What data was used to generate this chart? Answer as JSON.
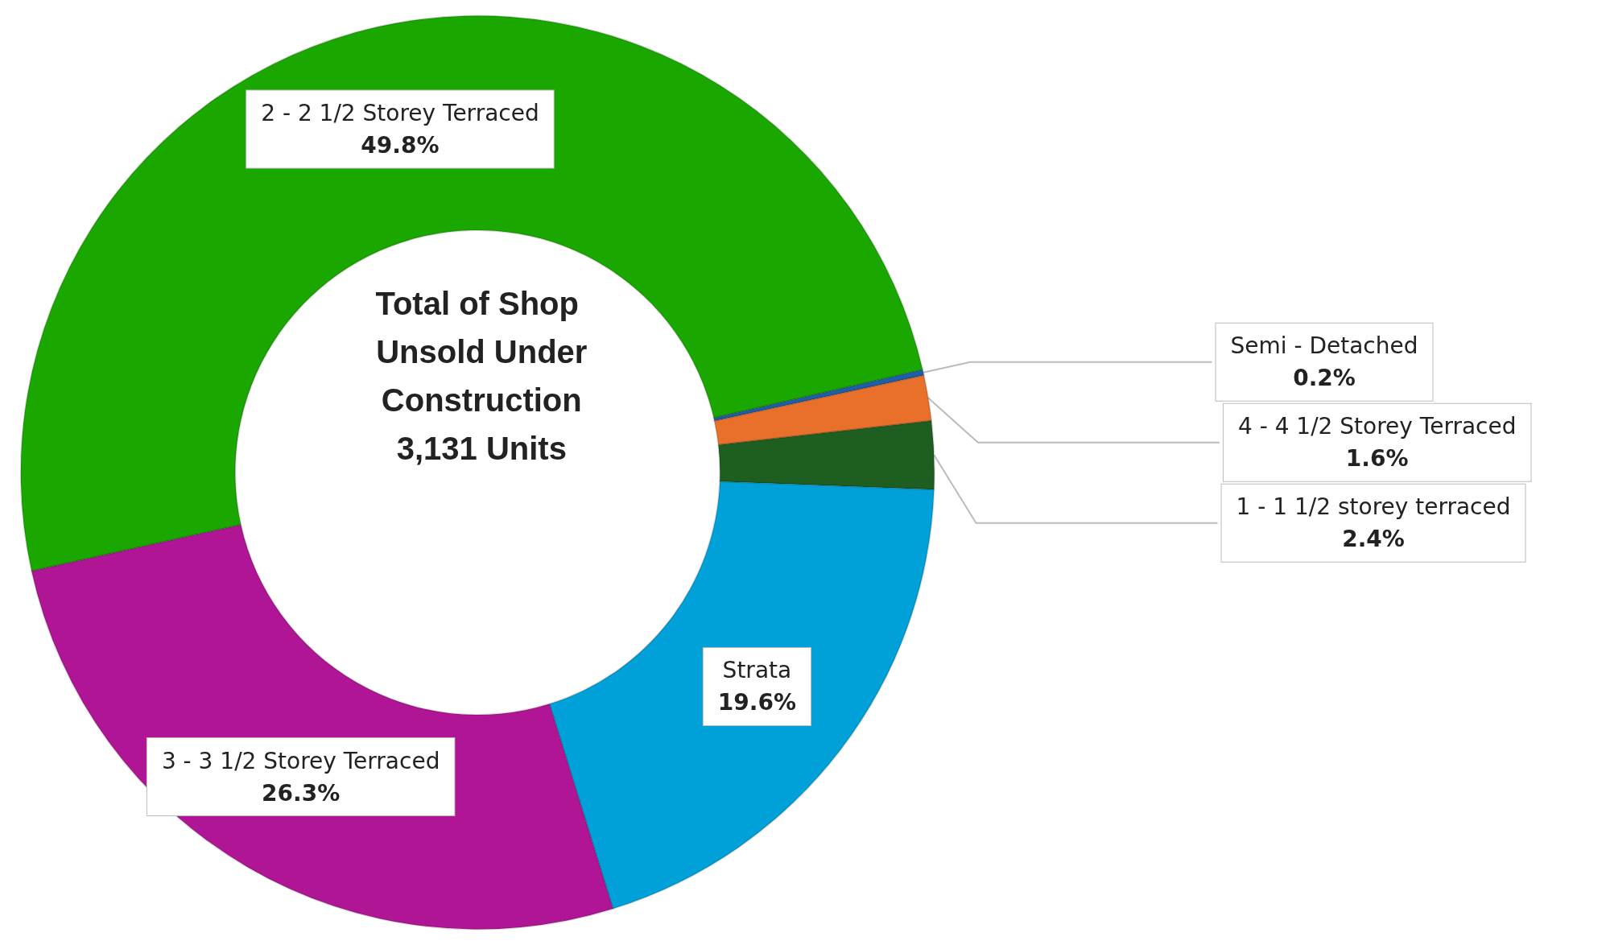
{
  "chart_data": {
    "type": "donut",
    "title": "Total of Shop Unsold Under Construction 3,131 Units",
    "categories": [
      "2 - 2 1/2 Storey Terraced",
      "Semi - Detached",
      "4 - 4 1/2 Storey Terraced",
      "1 - 1 1/2 storey terraced",
      "Strata",
      "3 - 3 1/2 Storey Terraced"
    ],
    "values": [
      49.8,
      0.2,
      1.6,
      2.4,
      19.6,
      26.3
    ],
    "value_labels": [
      "49.8%",
      "0.2%",
      "1.6%",
      "2.4%",
      "19.6%",
      "26.3%"
    ],
    "colors": [
      "#1aa800",
      "#1f5fa8",
      "#e8702a",
      "#1e5e20",
      "#00a0d8",
      "#b01595"
    ],
    "legend": false
  }
}
